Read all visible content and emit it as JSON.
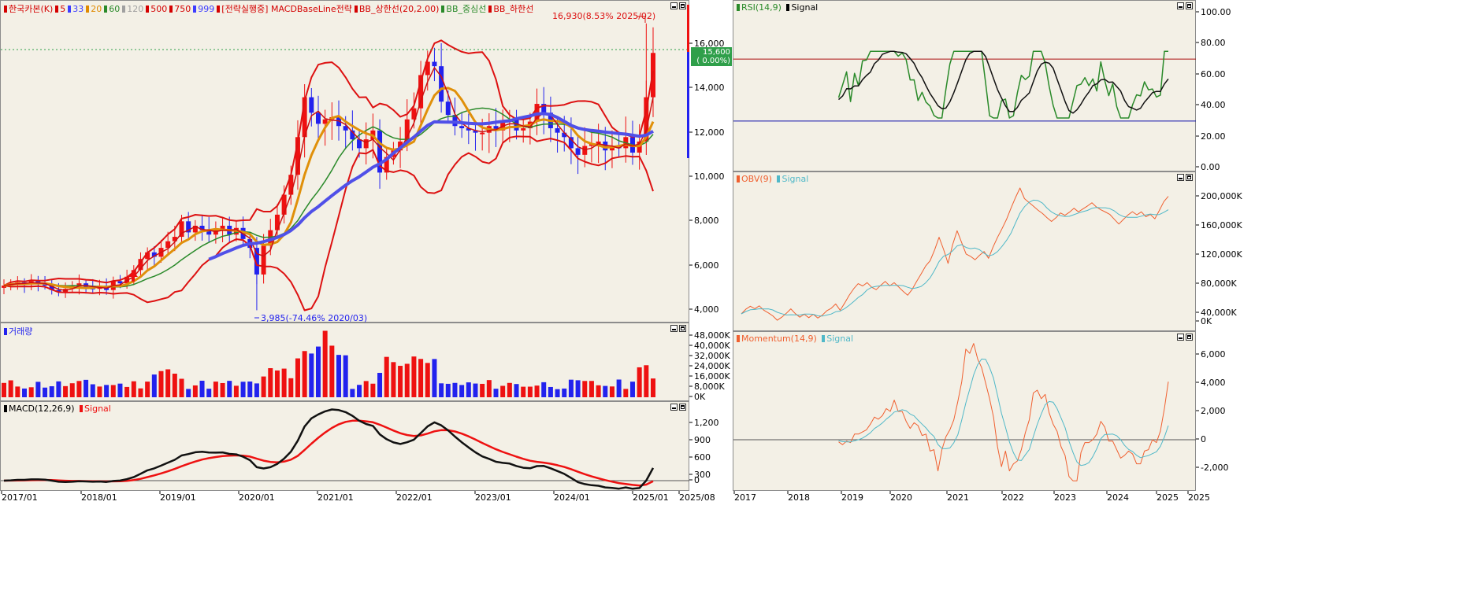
{
  "price_pane": {
    "legend": [
      {
        "text": "한국카본(K)",
        "color": "#d40000"
      },
      {
        "text": "5",
        "color": "#d40000"
      },
      {
        "text": "33",
        "color": "#3d3dff"
      },
      {
        "text": "20",
        "color": "#e08a00"
      },
      {
        "text": "60",
        "color": "#2a8a2a"
      },
      {
        "text": "120",
        "color": "#a0a0a0"
      },
      {
        "text": "500",
        "color": "#d40000"
      },
      {
        "text": "750",
        "color": "#d40000"
      },
      {
        "text": "999",
        "color": "#3d3dff"
      },
      {
        "text": "[전략실행중] MACDBaseLine전략",
        "color": "#d40000"
      },
      {
        "text": "BB_상한선(20,2.00)",
        "color": "#d40000"
      },
      {
        "text": "BB_중심선",
        "color": "#2a8a2a"
      },
      {
        "text": "BB_하한선",
        "color": "#d40000"
      }
    ],
    "yticks": [
      "16,000",
      "14,000",
      "12,000",
      "10,000",
      "8,000",
      "6,000",
      "4,000"
    ],
    "high_annotation": "16,930(8.53% 2025/02)",
    "low_annotation": "3,985(-74.46% 2020/03)",
    "current_price": "15,600",
    "current_change": "( 0.00%)"
  },
  "volume_pane": {
    "legend": "거래량",
    "yticks": [
      "48,000K",
      "40,000K",
      "32,000K",
      "24,000K",
      "16,000K",
      "8,000K",
      "0K"
    ]
  },
  "macd_pane": {
    "legend_main": "MACD(12,26,9)",
    "legend_signal": "Signal",
    "yticks": [
      "1,200",
      "900",
      "600",
      "300",
      "0"
    ]
  },
  "left_xaxis": [
    "2017/01",
    "2018/01",
    "2019/01",
    "2020/01",
    "2021/01",
    "2022/01",
    "2023/01",
    "2024/01",
    "2025/01",
    "2025/08"
  ],
  "rsi_pane": {
    "legend_main": "RSI(14,9)",
    "legend_signal": "Signal",
    "yticks": [
      "100.00",
      "80.00",
      "60.00",
      "40.00",
      "20.00",
      "0.00"
    ]
  },
  "obv_pane": {
    "legend_main": "OBV(9)",
    "legend_signal": "Signal",
    "yticks": [
      "200,000K",
      "160,000K",
      "120,000K",
      "80,000K",
      "40,000K",
      "0K"
    ]
  },
  "momentum_pane": {
    "legend_main": "Momentum(14,9)",
    "legend_signal": "Signal",
    "yticks": [
      "6,000",
      "4,000",
      "2,000",
      "0",
      "-2,000"
    ]
  },
  "right_xaxis": [
    "2017",
    "2018",
    "2019",
    "2020",
    "2021",
    "2022",
    "2023",
    "2024",
    "2025",
    "2025"
  ],
  "colors": {
    "up": "#ee1111",
    "down": "#2222ee",
    "pane_bg": "#f3f0e6",
    "ma_blue": "#5050e8",
    "ma_orange": "#e0900a",
    "ma_green": "#2a8a2a",
    "rsi": "#2a8a2a",
    "obv": "#f06030",
    "signal_cyan": "#50b8c8"
  }
}
